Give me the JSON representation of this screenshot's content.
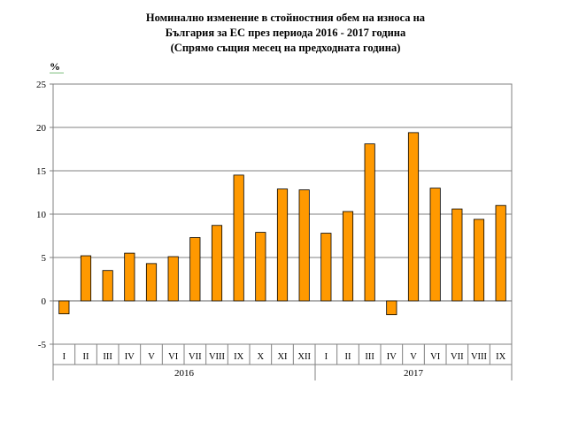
{
  "chart_data": {
    "type": "bar",
    "title_lines": [
      "Номинално изменение в стойностния обем на износа на",
      "България за ЕС през периода 2016 - 2017 година",
      "(Спрямо същия месец на предходната година)"
    ],
    "ylabel": "%",
    "ylim": [
      -5,
      25
    ],
    "yticks": [
      -5,
      0,
      5,
      10,
      15,
      20,
      25
    ],
    "grid": true,
    "bar_color": "#FF9900",
    "groups": [
      {
        "label": "2016",
        "categories": [
          "I",
          "II",
          "III",
          "IV",
          "V",
          "VI",
          "VII",
          "VIII",
          "IX",
          "X",
          "XI",
          "XII"
        ]
      },
      {
        "label": "2017",
        "categories": [
          "I",
          "II",
          "III",
          "IV",
          "V",
          "VI",
          "VII",
          "VIII",
          "IX"
        ]
      }
    ],
    "categories": [
      "I",
      "II",
      "III",
      "IV",
      "V",
      "VI",
      "VII",
      "VIII",
      "IX",
      "X",
      "XI",
      "XII",
      "I",
      "II",
      "III",
      "IV",
      "V",
      "VI",
      "VII",
      "VIII",
      "IX"
    ],
    "values": [
      -1.5,
      5.2,
      3.5,
      5.5,
      4.3,
      5.1,
      7.3,
      8.7,
      14.5,
      7.9,
      12.9,
      12.8,
      7.8,
      10.3,
      18.1,
      -1.6,
      19.4,
      13.0,
      10.6,
      9.4,
      11.0
    ]
  }
}
